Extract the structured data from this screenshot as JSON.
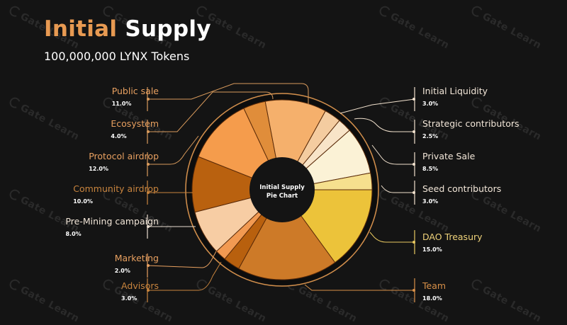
{
  "header": {
    "title_accent": "Initial",
    "title_rest": "Supply",
    "subtitle": "100,000,000 LYNX Tokens"
  },
  "watermark": {
    "text": "Gate Learn"
  },
  "center": {
    "line1": "Initial Supply",
    "line2": "Pie Chart"
  },
  "colors": {
    "background": "#141414",
    "accent": "#e89a52",
    "ring": "#d4904c"
  },
  "labels_left": [
    {
      "name": "Public sale",
      "pct": "11.0%",
      "color": "#e8a060"
    },
    {
      "name": "Ecosystem",
      "pct": "4.0%",
      "color": "#e8a060"
    },
    {
      "name": "Protocol airdrop",
      "pct": "12.0%",
      "color": "#e8a060"
    },
    {
      "name": "Community airdrop",
      "pct": "10.0%",
      "color": "#c8843e"
    },
    {
      "name": "Pre-Mining campaign",
      "pct": "8.0%",
      "color": "#f2e6d8"
    },
    {
      "name": "Marketing",
      "pct": "2.0%",
      "color": "#e8a060"
    },
    {
      "name": "Advisors",
      "pct": "3.0%",
      "color": "#c8843e"
    }
  ],
  "labels_right": [
    {
      "name": "Initial Liquidity",
      "pct": "3.0%",
      "color": "#f2e6d8"
    },
    {
      "name": "Strategic contributors",
      "pct": "2.5%",
      "color": "#f2e6d8"
    },
    {
      "name": "Private Sale",
      "pct": "8.5%",
      "color": "#f2e6d8"
    },
    {
      "name": "Seed contributors",
      "pct": "3.0%",
      "color": "#f2e6d8"
    },
    {
      "name": "DAO Treasury",
      "pct": "15.0%",
      "color": "#efd27a"
    },
    {
      "name": "Team",
      "pct": "18.0%",
      "color": "#d89048"
    }
  ],
  "chart_data": {
    "type": "pie",
    "title": "Initial Supply",
    "subtitle": "100,000,000 LYNX Tokens",
    "center_label": "Initial Supply Pie Chart",
    "unit": "%",
    "categories": [
      "DAO Treasury",
      "Team",
      "Advisors",
      "Marketing",
      "Pre-Mining campaign",
      "Community airdrop",
      "Protocol airdrop",
      "Ecosystem",
      "Public sale",
      "Initial Liquidity",
      "Strategic contributors",
      "Private Sale",
      "Seed contributors"
    ],
    "values": [
      15.0,
      18.0,
      3.0,
      2.0,
      8.0,
      10.0,
      12.0,
      4.0,
      11.0,
      3.0,
      2.5,
      8.5,
      3.0
    ],
    "slice_colors": [
      "#ecc33a",
      "#cd7a28",
      "#b8600e",
      "#f29a52",
      "#f7cda4",
      "#b9610f",
      "#f59c4c",
      "#e08d3a",
      "#f5b06c",
      "#f4cca0",
      "#f8e4c8",
      "#fbf2d6",
      "#f6e08e"
    ],
    "legend_position": "both-sides-with-leader-lines",
    "donut": true
  }
}
